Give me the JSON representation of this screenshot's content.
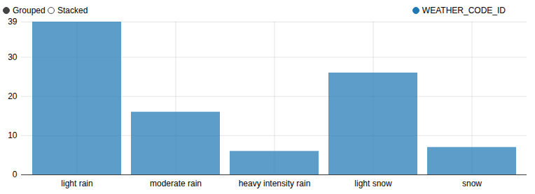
{
  "chart_data": {
    "type": "bar",
    "controls": [
      "Grouped",
      "Stacked"
    ],
    "stacked": false,
    "categories": [
      "light rain",
      "moderate rain",
      "heavy intensity rain",
      "light snow",
      "snow"
    ],
    "series": [
      {
        "name": "WEATHER_CODE_ID",
        "color": "#1f77b4",
        "values": [
          39,
          16,
          6,
          26,
          7
        ]
      }
    ],
    "legend": "top-right",
    "ylim": [
      0,
      39
    ],
    "yticks": [
      0,
      10,
      20,
      30,
      39
    ],
    "grid": true
  }
}
